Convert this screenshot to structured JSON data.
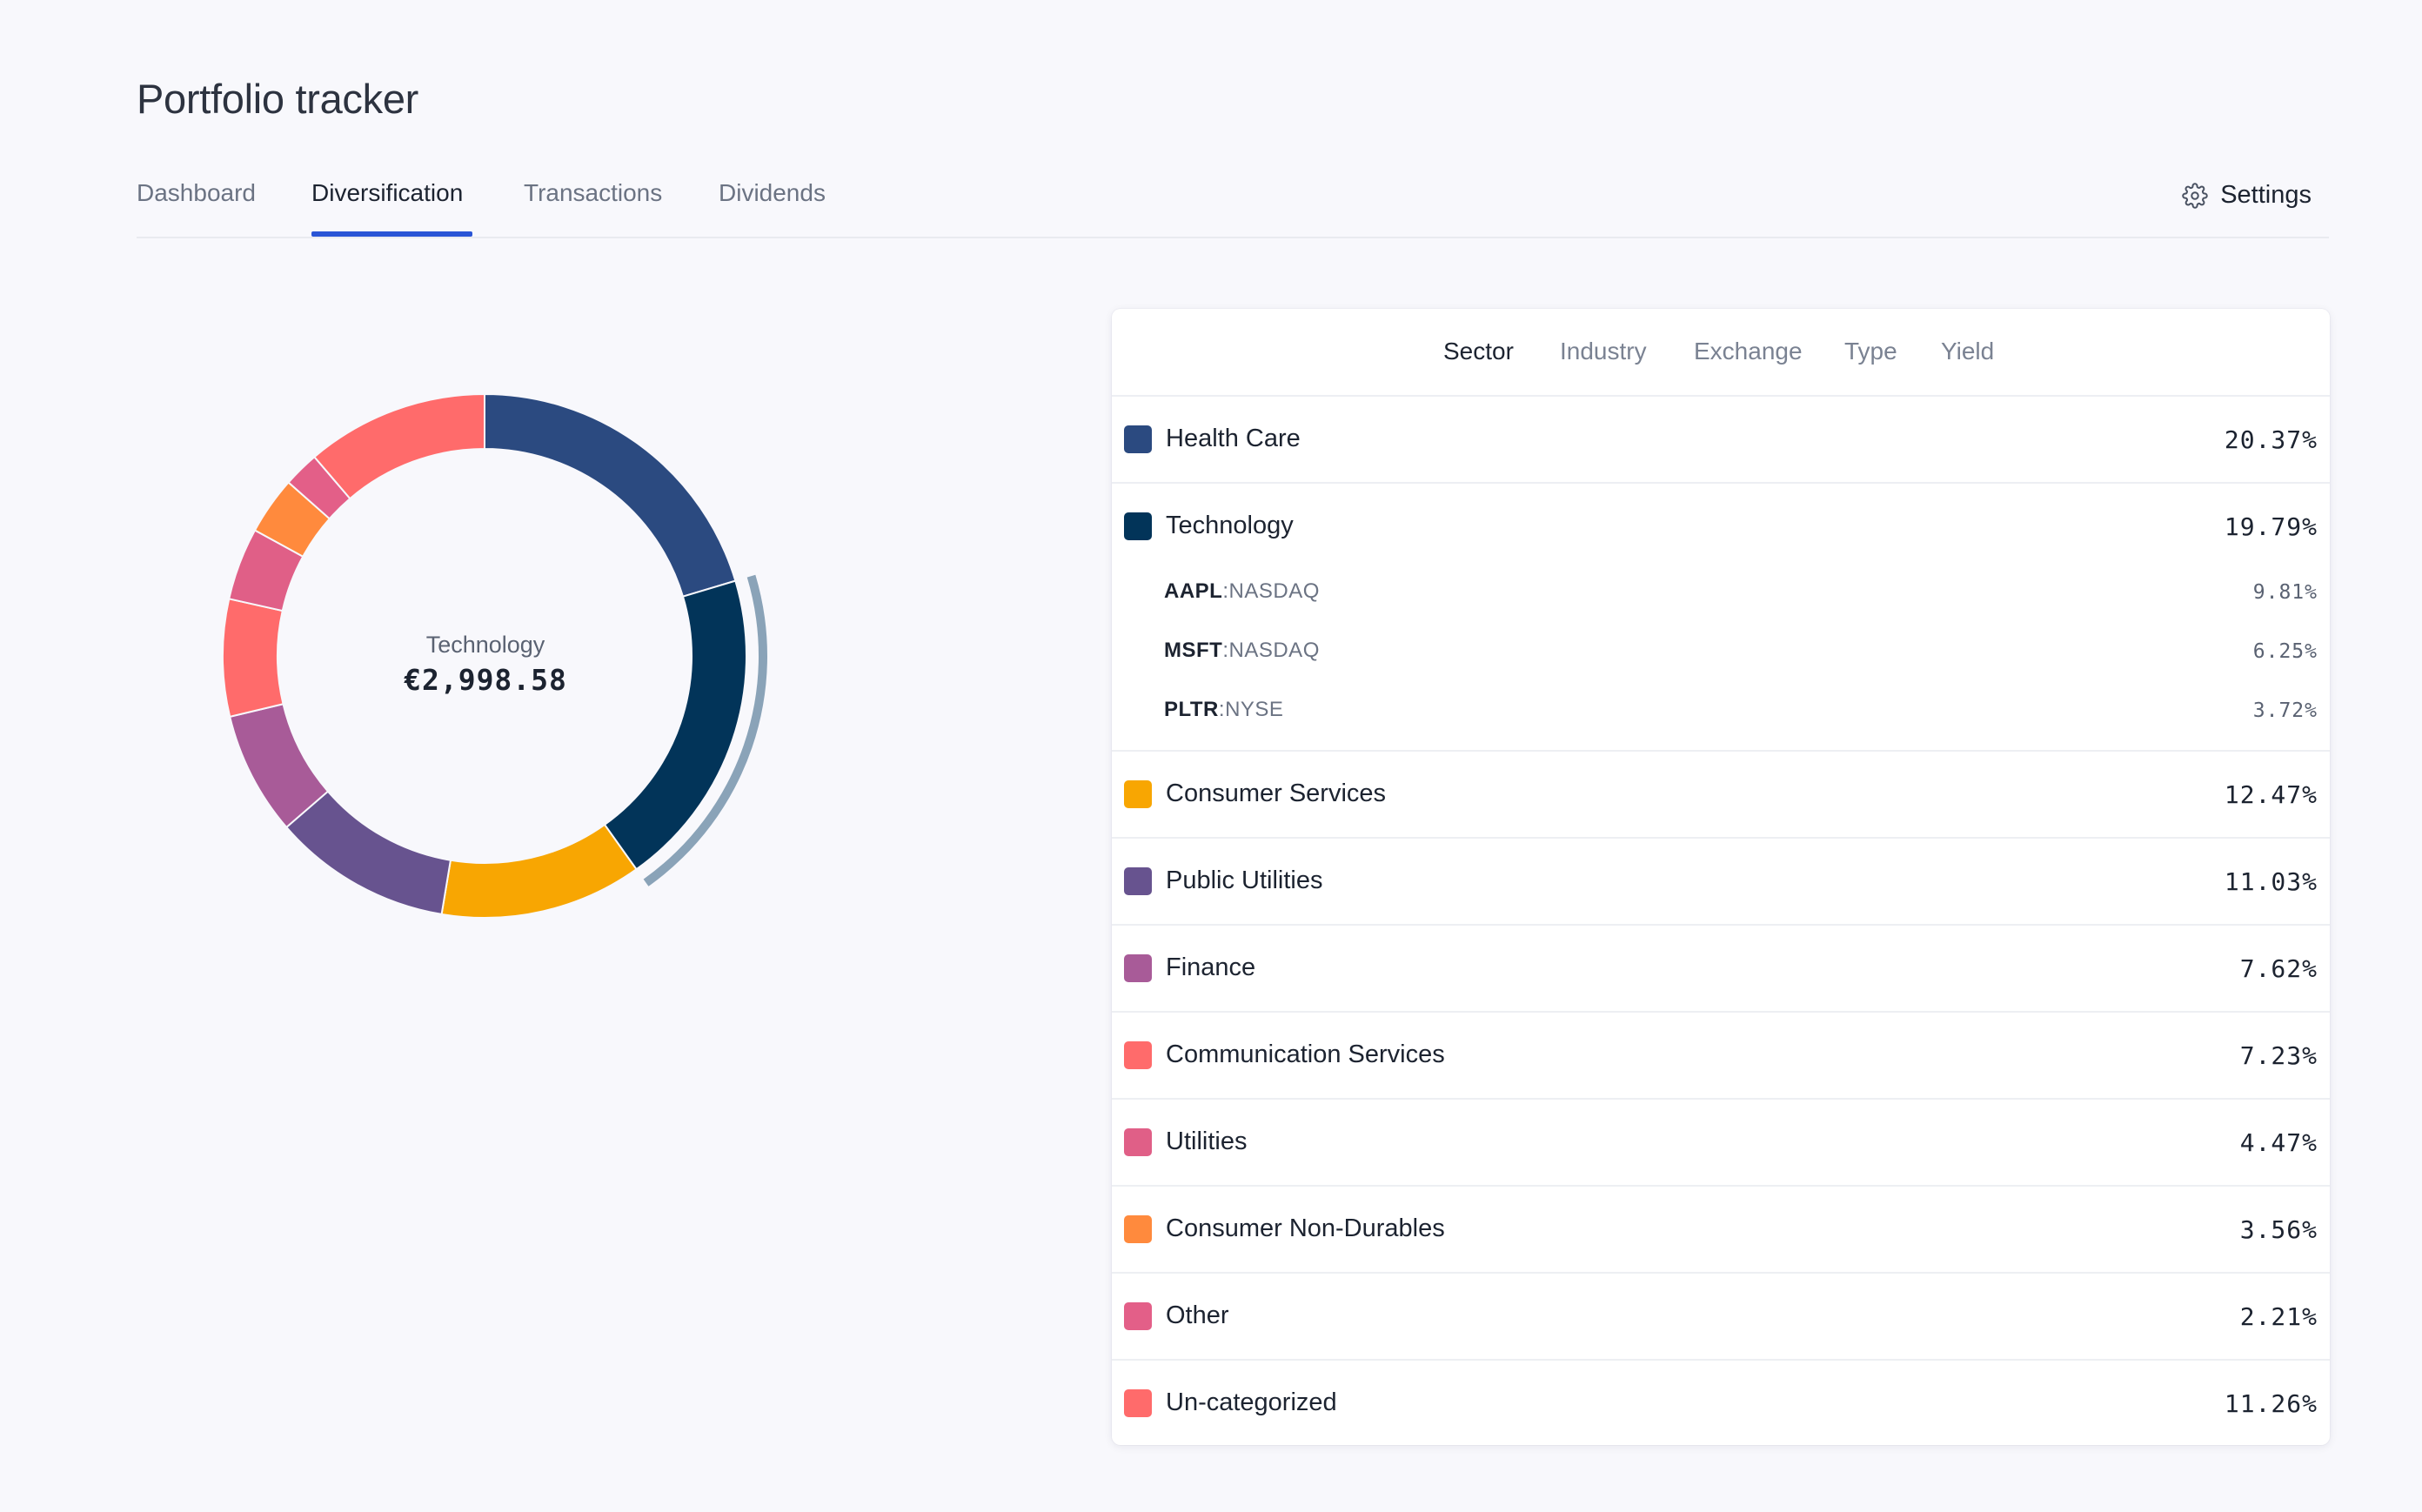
{
  "app": {
    "title": "Portfolio tracker"
  },
  "nav": {
    "tabs": [
      {
        "label": "Dashboard",
        "active": false
      },
      {
        "label": "Diversification",
        "active": true
      },
      {
        "label": "Transactions",
        "active": false
      },
      {
        "label": "Dividends",
        "active": false
      }
    ],
    "settings_label": "Settings",
    "settings_icon": "gear-icon"
  },
  "chart": {
    "selected_name": "Technology",
    "selected_value": "€2,998.58"
  },
  "panel": {
    "tabs": [
      {
        "label": "Sector",
        "active": true
      },
      {
        "label": "Industry",
        "active": false
      },
      {
        "label": "Exchange",
        "active": false
      },
      {
        "label": "Type",
        "active": false
      },
      {
        "label": "Yield",
        "active": false
      }
    ]
  },
  "sectors": [
    {
      "name": "Health Care",
      "pct": "20.37%",
      "color": "#2b4a80",
      "holdings": []
    },
    {
      "name": "Technology",
      "pct": "19.79%",
      "color": "#023459",
      "holdings": [
        {
          "symbol": "AAPL",
          "exchange": "NASDAQ",
          "pct": "9.81%"
        },
        {
          "symbol": "MSFT",
          "exchange": "NASDAQ",
          "pct": "6.25%"
        },
        {
          "symbol": "PLTR",
          "exchange": "NYSE",
          "pct": "3.72%"
        }
      ]
    },
    {
      "name": "Consumer Services",
      "pct": "12.47%",
      "color": "#f8a602",
      "holdings": []
    },
    {
      "name": "Public Utilities",
      "pct": "11.03%",
      "color": "#67538f",
      "holdings": []
    },
    {
      "name": "Finance",
      "pct": "7.62%",
      "color": "#a85b98",
      "holdings": []
    },
    {
      "name": "Communication Services",
      "pct": "7.23%",
      "color": "#ff6b6b",
      "holdings": []
    },
    {
      "name": "Utilities",
      "pct": "4.47%",
      "color": "#e05f87",
      "holdings": []
    },
    {
      "name": "Consumer Non-Durables",
      "pct": "3.56%",
      "color": "#ff8a3d",
      "holdings": []
    },
    {
      "name": "Other",
      "pct": "2.21%",
      "color": "#e35f88",
      "holdings": []
    },
    {
      "name": "Un-categorized",
      "pct": "11.26%",
      "color": "#ff6b6b",
      "holdings": []
    }
  ],
  "chart_data": {
    "type": "pie",
    "categories": [
      "Health Care",
      "Technology",
      "Consumer Services",
      "Public Utilities",
      "Finance",
      "Communication Services",
      "Utilities",
      "Consumer Non-Durables",
      "Other",
      "Un-categorized"
    ],
    "values": [
      20.37,
      19.79,
      12.47,
      11.03,
      7.62,
      7.23,
      4.47,
      3.56,
      2.21,
      11.26
    ],
    "highlighted": "Technology"
  }
}
